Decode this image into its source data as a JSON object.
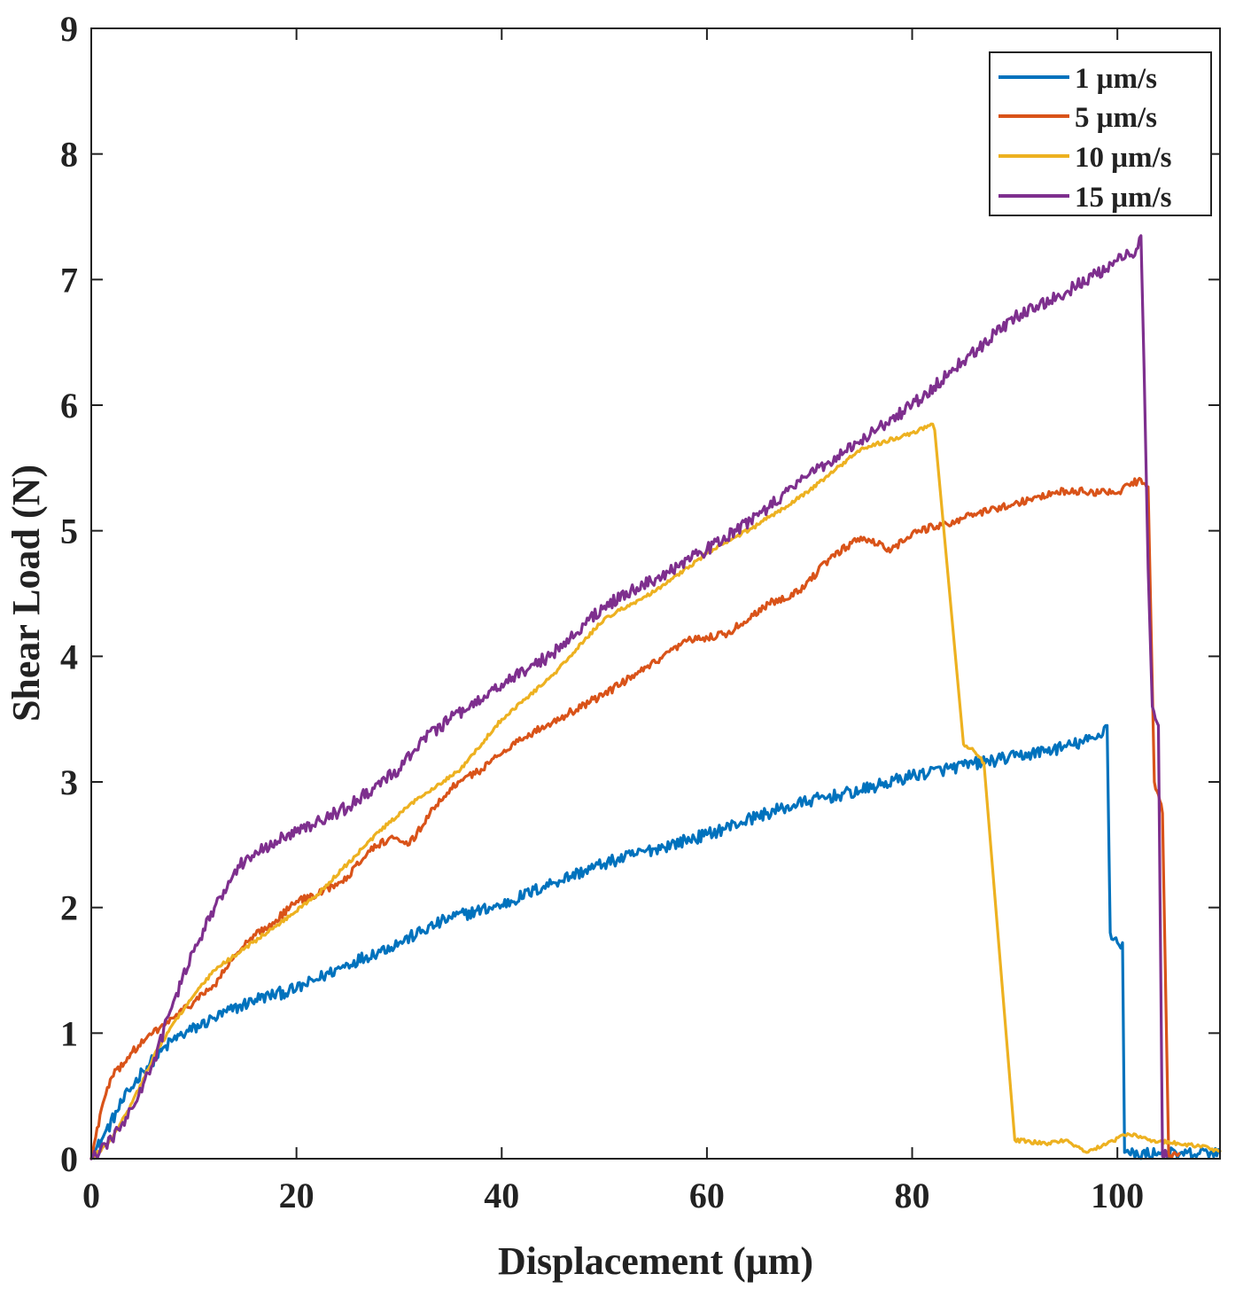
{
  "chart_data": {
    "type": "line",
    "title": "",
    "xlabel": "Displacement (μm)",
    "ylabel": "Shear Load (N)",
    "xlim": [
      0,
      110
    ],
    "ylim": [
      0,
      9
    ],
    "xticks": [
      0,
      20,
      40,
      60,
      80,
      100
    ],
    "yticks": [
      0,
      1,
      2,
      3,
      4,
      5,
      6,
      7,
      8,
      9
    ],
    "grid": false,
    "legend_position": "top-right",
    "series": [
      {
        "name": "1 μm/s",
        "color": "#0072BD",
        "noise": 0.05,
        "points": [
          [
            0,
            0
          ],
          [
            1,
            0.15
          ],
          [
            3,
            0.45
          ],
          [
            5,
            0.7
          ],
          [
            8,
            0.95
          ],
          [
            12,
            1.12
          ],
          [
            16,
            1.27
          ],
          [
            20,
            1.35
          ],
          [
            25,
            1.55
          ],
          [
            30,
            1.72
          ],
          [
            35,
            1.92
          ],
          [
            40,
            2.02
          ],
          [
            45,
            2.2
          ],
          [
            50,
            2.35
          ],
          [
            55,
            2.47
          ],
          [
            60,
            2.58
          ],
          [
            65,
            2.73
          ],
          [
            70,
            2.85
          ],
          [
            75,
            2.93
          ],
          [
            80,
            3.05
          ],
          [
            85,
            3.13
          ],
          [
            90,
            3.2
          ],
          [
            95,
            3.28
          ],
          [
            98,
            3.35
          ],
          [
            99,
            3.45
          ],
          [
            99.3,
            1.8
          ],
          [
            100,
            1.72
          ],
          [
            100.5,
            1.72
          ],
          [
            100.7,
            0.05
          ],
          [
            102,
            0.03
          ],
          [
            104,
            0.05
          ],
          [
            106,
            0.03
          ],
          [
            108,
            0.04
          ],
          [
            110,
            0.06
          ]
        ]
      },
      {
        "name": "5 μm/s",
        "color": "#D95319",
        "noise": 0.03,
        "points": [
          [
            0,
            0
          ],
          [
            1,
            0.4
          ],
          [
            2,
            0.65
          ],
          [
            4,
            0.85
          ],
          [
            6,
            1.0
          ],
          [
            8,
            1.12
          ],
          [
            10,
            1.25
          ],
          [
            12,
            1.38
          ],
          [
            14,
            1.62
          ],
          [
            16,
            1.78
          ],
          [
            18,
            1.9
          ],
          [
            20,
            2.05
          ],
          [
            22,
            2.1
          ],
          [
            25,
            2.25
          ],
          [
            27,
            2.45
          ],
          [
            29,
            2.55
          ],
          [
            31,
            2.5
          ],
          [
            33,
            2.75
          ],
          [
            35,
            2.95
          ],
          [
            38,
            3.1
          ],
          [
            41,
            3.3
          ],
          [
            45,
            3.48
          ],
          [
            50,
            3.7
          ],
          [
            55,
            3.95
          ],
          [
            58,
            4.12
          ],
          [
            62,
            4.18
          ],
          [
            66,
            4.42
          ],
          [
            69,
            4.52
          ],
          [
            72,
            4.78
          ],
          [
            75,
            4.95
          ],
          [
            78,
            4.85
          ],
          [
            80,
            4.98
          ],
          [
            85,
            5.1
          ],
          [
            90,
            5.22
          ],
          [
            95,
            5.32
          ],
          [
            100,
            5.3
          ],
          [
            102,
            5.4
          ],
          [
            103,
            5.35
          ],
          [
            103.6,
            3.0
          ],
          [
            104,
            2.9
          ],
          [
            104.4,
            2.75
          ],
          [
            105,
            0.02
          ],
          [
            106,
            0.04
          ]
        ]
      },
      {
        "name": "10 μm/s",
        "color": "#EDB120",
        "noise": 0.015,
        "points": [
          [
            0,
            0
          ],
          [
            2,
            0.15
          ],
          [
            4,
            0.45
          ],
          [
            6,
            0.8
          ],
          [
            8,
            1.08
          ],
          [
            10,
            1.3
          ],
          [
            12,
            1.5
          ],
          [
            15,
            1.68
          ],
          [
            18,
            1.85
          ],
          [
            22,
            2.1
          ],
          [
            25,
            2.35
          ],
          [
            28,
            2.6
          ],
          [
            32,
            2.88
          ],
          [
            36,
            3.1
          ],
          [
            40,
            3.5
          ],
          [
            45,
            3.85
          ],
          [
            50,
            4.3
          ],
          [
            55,
            4.52
          ],
          [
            60,
            4.82
          ],
          [
            65,
            5.05
          ],
          [
            70,
            5.32
          ],
          [
            75,
            5.65
          ],
          [
            80,
            5.78
          ],
          [
            82,
            5.85
          ],
          [
            82.2,
            5.8
          ],
          [
            85,
            3.3
          ],
          [
            86,
            3.25
          ],
          [
            87,
            3.15
          ],
          [
            90,
            0.15
          ],
          [
            93,
            0.12
          ],
          [
            95,
            0.15
          ],
          [
            97,
            0.05
          ],
          [
            99,
            0.12
          ],
          [
            101,
            0.2
          ],
          [
            103,
            0.15
          ],
          [
            106,
            0.12
          ],
          [
            108,
            0.1
          ],
          [
            110,
            0.06
          ]
        ]
      },
      {
        "name": "15 μm/s",
        "color": "#7E2F8E",
        "noise": 0.05,
        "points": [
          [
            0,
            0
          ],
          [
            2,
            0.15
          ],
          [
            4,
            0.4
          ],
          [
            6,
            0.75
          ],
          [
            8,
            1.25
          ],
          [
            10,
            1.65
          ],
          [
            12,
            2.0
          ],
          [
            14,
            2.3
          ],
          [
            16,
            2.45
          ],
          [
            20,
            2.6
          ],
          [
            25,
            2.8
          ],
          [
            30,
            3.1
          ],
          [
            32,
            3.32
          ],
          [
            35,
            3.5
          ],
          [
            38,
            3.65
          ],
          [
            40,
            3.78
          ],
          [
            45,
            4.02
          ],
          [
            50,
            4.4
          ],
          [
            55,
            4.62
          ],
          [
            60,
            4.85
          ],
          [
            65,
            5.12
          ],
          [
            70,
            5.45
          ],
          [
            75,
            5.72
          ],
          [
            80,
            6.0
          ],
          [
            85,
            6.35
          ],
          [
            90,
            6.7
          ],
          [
            95,
            6.9
          ],
          [
            100,
            7.15
          ],
          [
            102,
            7.25
          ],
          [
            102.3,
            7.35
          ],
          [
            102.6,
            6.3
          ],
          [
            103,
            4.7
          ],
          [
            103.4,
            3.6
          ],
          [
            104,
            3.45
          ],
          [
            104.4,
            0.02
          ],
          [
            104.8,
            0.02
          ]
        ]
      }
    ]
  }
}
